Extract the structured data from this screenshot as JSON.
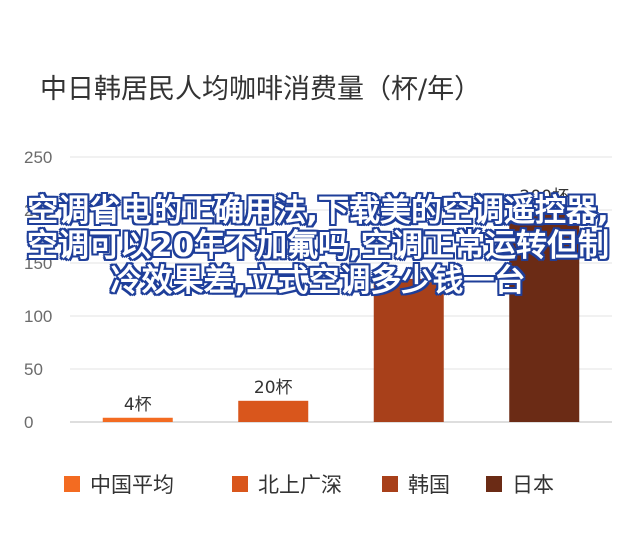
{
  "chart_data": {
    "type": "bar",
    "title": "中日韩居民人均咖啡消费量（杯/年）",
    "categories": [
      "中国平均",
      "北上广深",
      "韩国",
      "日本"
    ],
    "values": [
      4,
      20,
      135,
      200
    ],
    "data_labels": [
      "4杯",
      "20杯",
      "",
      "200杯"
    ],
    "colors": [
      "#f36b21",
      "#d9561c",
      "#a8401a",
      "#6b2b15"
    ],
    "ylim": [
      0,
      250
    ],
    "yticks": [
      0,
      50,
      100,
      150,
      200,
      250
    ],
    "grid": true,
    "legend": "bottom"
  },
  "overlay": {
    "text": "空调省电的正确用法,下载美的空调遥控器,空调可以20年不加氟吗,空调正常运转但制冷效果差,立式空调多少钱一台"
  }
}
